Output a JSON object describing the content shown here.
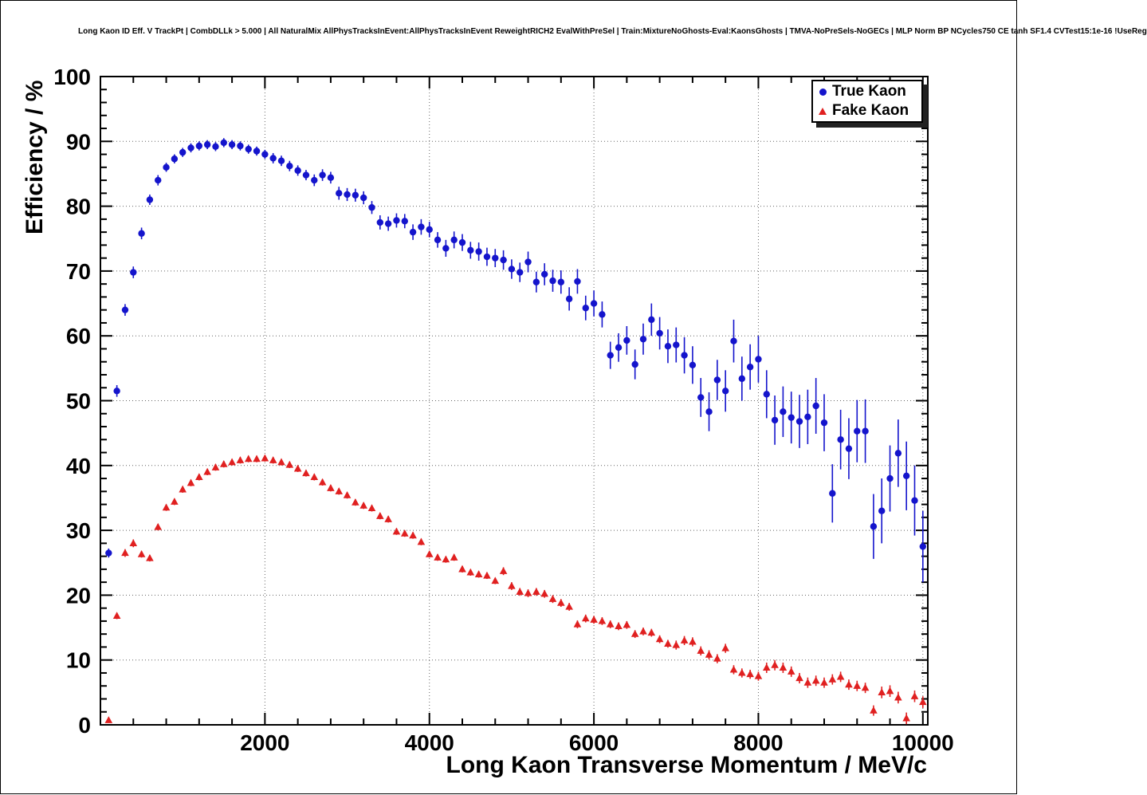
{
  "title": "Long Kaon ID Eff. V TrackPt | CombDLLk > 5.000 | All NaturalMix AllPhysTracksInEvent:AllPhysTracksInEvent ReweightRICH2 EvalWithPreSel | Train:MixtureNoGhosts-Eval:KaonsGhosts | TMVA-NoPreSels-NoGECs | MLP Norm BP NCycles750 CE tanh SF1.4 CVTest15:1e-16 !UseReg",
  "chart_data": {
    "type": "scatter",
    "title": "Long Kaon ID Eff. V TrackPt",
    "xlabel": "Long Kaon Transverse Momentum / MeV/c",
    "ylabel": "Efficiency / %",
    "xlim": [
      0,
      10060
    ],
    "ylim": [
      0,
      100
    ],
    "x_major_ticks": [
      2000,
      4000,
      6000,
      8000,
      10000
    ],
    "x_minor_step": 400,
    "y_major_step": 10,
    "y_minor_step": 2,
    "grid": "dotted",
    "legend": {
      "position": "top-right",
      "entries": [
        {
          "label": "True Kaon",
          "marker": "circle",
          "color": "#1414cc"
        },
        {
          "label": "Fake Kaon",
          "marker": "triangle",
          "color": "#e02020"
        }
      ]
    },
    "series": [
      {
        "name": "True Kaon",
        "marker": "circle",
        "color": "#1414cc",
        "x": [
          100,
          200,
          300,
          400,
          500,
          600,
          700,
          800,
          900,
          1000,
          1100,
          1200,
          1300,
          1400,
          1500,
          1600,
          1700,
          1800,
          1900,
          2000,
          2100,
          2200,
          2300,
          2400,
          2500,
          2600,
          2700,
          2800,
          2900,
          3000,
          3100,
          3200,
          3300,
          3400,
          3500,
          3600,
          3700,
          3800,
          3900,
          4000,
          4100,
          4200,
          4300,
          4400,
          4500,
          4600,
          4700,
          4800,
          4900,
          5000,
          5100,
          5200,
          5300,
          5400,
          5500,
          5600,
          5700,
          5800,
          5900,
          6000,
          6100,
          6200,
          6300,
          6400,
          6500,
          6600,
          6700,
          6800,
          6900,
          7000,
          7100,
          7200,
          7300,
          7400,
          7500,
          7600,
          7700,
          7800,
          7900,
          8000,
          8100,
          8200,
          8300,
          8400,
          8500,
          8600,
          8700,
          8800,
          8900,
          9000,
          9100,
          9200,
          9300,
          9400,
          9500,
          9600,
          9700,
          9800,
          9900,
          10000
        ],
        "y": [
          26.5,
          51.5,
          64.0,
          69.8,
          75.8,
          81.0,
          84.0,
          86.0,
          87.3,
          88.3,
          89.0,
          89.3,
          89.5,
          89.2,
          89.8,
          89.5,
          89.3,
          88.8,
          88.5,
          88.0,
          87.4,
          87.0,
          86.2,
          85.5,
          84.8,
          84.0,
          84.8,
          84.4,
          82.0,
          81.8,
          81.7,
          81.3,
          79.8,
          77.5,
          77.3,
          77.8,
          77.7,
          76.0,
          76.8,
          76.4,
          74.8,
          73.5,
          74.8,
          74.4,
          73.2,
          73.0,
          72.2,
          72.0,
          71.7,
          70.3,
          69.8,
          71.4,
          68.3,
          69.5,
          68.5,
          68.3,
          65.7,
          68.4,
          64.3,
          65.0,
          63.3,
          57.0,
          58.2,
          59.3,
          55.6,
          59.5,
          62.5,
          60.4,
          58.4,
          58.6,
          57.0,
          55.5,
          50.5,
          48.3,
          53.2,
          51.5,
          59.2,
          53.4,
          55.2,
          56.4,
          51.0,
          47.0,
          48.3,
          47.4,
          46.8,
          47.5,
          49.2,
          46.6,
          35.7,
          44.0,
          42.6,
          45.3,
          45.3,
          30.6,
          33.0,
          38.0,
          41.9,
          38.4,
          34.6,
          27.5
        ],
        "ey": [
          0.7,
          0.9,
          0.9,
          0.9,
          0.9,
          0.8,
          0.8,
          0.7,
          0.7,
          0.7,
          0.7,
          0.7,
          0.7,
          0.7,
          0.7,
          0.7,
          0.7,
          0.7,
          0.7,
          0.7,
          0.8,
          0.8,
          0.8,
          0.8,
          0.8,
          0.9,
          0.9,
          0.9,
          1.0,
          1.0,
          1.0,
          1.0,
          1.0,
          1.1,
          1.1,
          1.1,
          1.1,
          1.2,
          1.2,
          1.2,
          1.2,
          1.3,
          1.3,
          1.3,
          1.3,
          1.4,
          1.4,
          1.4,
          1.5,
          1.5,
          1.5,
          1.6,
          1.6,
          1.7,
          1.7,
          1.8,
          1.8,
          1.9,
          1.9,
          2.0,
          2.0,
          2.1,
          2.2,
          2.2,
          2.3,
          2.4,
          2.5,
          2.5,
          2.6,
          2.7,
          2.8,
          2.9,
          3.0,
          3.0,
          3.1,
          3.2,
          3.3,
          3.4,
          3.5,
          3.6,
          3.7,
          3.8,
          3.9,
          4.0,
          4.1,
          4.2,
          4.3,
          4.4,
          4.5,
          4.6,
          4.7,
          4.8,
          4.9,
          5.0,
          5.0,
          5.1,
          5.2,
          5.3,
          5.4,
          5.5
        ]
      },
      {
        "name": "Fake Kaon",
        "marker": "triangle",
        "color": "#e02020",
        "x": [
          100,
          200,
          300,
          400,
          500,
          600,
          700,
          800,
          900,
          1000,
          1100,
          1200,
          1300,
          1400,
          1500,
          1600,
          1700,
          1800,
          1900,
          2000,
          2100,
          2200,
          2300,
          2400,
          2500,
          2600,
          2700,
          2800,
          2900,
          3000,
          3100,
          3200,
          3300,
          3400,
          3500,
          3600,
          3700,
          3800,
          3900,
          4000,
          4100,
          4200,
          4300,
          4400,
          4500,
          4600,
          4700,
          4800,
          4900,
          5000,
          5100,
          5200,
          5300,
          5400,
          5500,
          5600,
          5700,
          5800,
          5900,
          6000,
          6100,
          6200,
          6300,
          6400,
          6500,
          6600,
          6700,
          6800,
          6900,
          7000,
          7100,
          7200,
          7300,
          7400,
          7500,
          7600,
          7700,
          7800,
          7900,
          8000,
          8100,
          8200,
          8300,
          8400,
          8500,
          8600,
          8700,
          8800,
          8900,
          9000,
          9100,
          9200,
          9300,
          9400,
          9500,
          9600,
          9700,
          9800,
          9900,
          10000
        ],
        "y": [
          0.7,
          16.8,
          26.5,
          28.0,
          26.3,
          25.7,
          30.5,
          33.5,
          34.4,
          36.3,
          37.3,
          38.2,
          39.0,
          39.7,
          40.2,
          40.5,
          40.8,
          41.0,
          41.0,
          41.1,
          40.8,
          40.5,
          40.1,
          39.5,
          38.8,
          38.2,
          37.4,
          36.5,
          36.0,
          35.4,
          34.3,
          33.8,
          33.4,
          32.2,
          31.7,
          29.8,
          29.5,
          29.2,
          28.2,
          26.3,
          25.8,
          25.5,
          25.8,
          24.0,
          23.5,
          23.2,
          23.0,
          22.2,
          23.7,
          21.4,
          20.5,
          20.3,
          20.5,
          20.2,
          19.4,
          18.8,
          18.2,
          15.5,
          16.4,
          16.2,
          16.0,
          15.5,
          15.2,
          15.4,
          14.0,
          14.4,
          14.2,
          13.2,
          12.5,
          12.3,
          13.0,
          12.8,
          11.4,
          10.8,
          10.2,
          11.8,
          8.5,
          8.0,
          7.8,
          7.5,
          8.8,
          9.2,
          8.8,
          8.2,
          7.2,
          6.5,
          6.8,
          6.5,
          7.0,
          7.4,
          6.2,
          6.0,
          5.7,
          2.2,
          5.0,
          5.2,
          4.2,
          1.0,
          4.4,
          3.5
        ],
        "ey": [
          0.3,
          0.5,
          0.6,
          0.6,
          0.5,
          0.5,
          0.5,
          0.5,
          0.5,
          0.5,
          0.5,
          0.5,
          0.5,
          0.5,
          0.5,
          0.5,
          0.5,
          0.5,
          0.5,
          0.5,
          0.5,
          0.5,
          0.5,
          0.5,
          0.5,
          0.5,
          0.5,
          0.5,
          0.5,
          0.5,
          0.5,
          0.5,
          0.5,
          0.5,
          0.5,
          0.5,
          0.5,
          0.5,
          0.5,
          0.5,
          0.5,
          0.5,
          0.5,
          0.5,
          0.5,
          0.5,
          0.5,
          0.5,
          0.6,
          0.6,
          0.6,
          0.6,
          0.6,
          0.6,
          0.6,
          0.6,
          0.6,
          0.6,
          0.6,
          0.6,
          0.6,
          0.6,
          0.6,
          0.6,
          0.6,
          0.6,
          0.6,
          0.6,
          0.6,
          0.7,
          0.7,
          0.7,
          0.7,
          0.7,
          0.7,
          0.7,
          0.7,
          0.7,
          0.7,
          0.7,
          0.8,
          0.8,
          0.8,
          0.8,
          0.8,
          0.8,
          0.8,
          0.8,
          0.8,
          0.8,
          0.8,
          0.8,
          0.8,
          0.8,
          0.9,
          0.9,
          0.9,
          0.9,
          0.9,
          0.9
        ]
      }
    ]
  }
}
